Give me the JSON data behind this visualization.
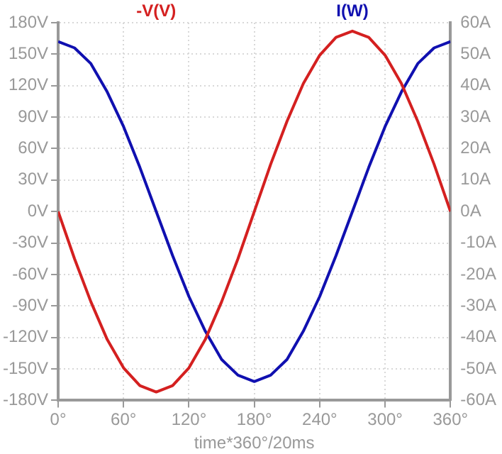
{
  "chart_data": {
    "type": "line",
    "xlabel": "time*360°/20ms",
    "x": [
      0,
      15,
      30,
      45,
      60,
      75,
      90,
      105,
      120,
      135,
      150,
      165,
      180,
      195,
      210,
      225,
      240,
      255,
      270,
      285,
      300,
      315,
      330,
      345,
      360
    ],
    "series": [
      {
        "name": "-V(V)",
        "color": "#d42020",
        "values": [
          0,
          -45,
          -86,
          -122,
          -149,
          -166,
          -172,
          -166,
          -149,
          -122,
          -86,
          -45,
          0,
          45,
          86,
          122,
          149,
          166,
          172,
          166,
          149,
          122,
          86,
          45,
          0
        ]
      },
      {
        "name": "I(W)",
        "color": "#1010b0",
        "axis": "y2",
        "values": [
          54,
          52,
          47,
          38,
          27,
          14,
          0,
          -14,
          -27,
          -38,
          -47,
          -52,
          -54,
          -52,
          -47,
          -38,
          -27,
          -14,
          0,
          14,
          27,
          38,
          47,
          52,
          54
        ]
      }
    ],
    "xlim": [
      0,
      360
    ],
    "xticks": [
      {
        "value": 0,
        "label": "0°"
      },
      {
        "value": 60,
        "label": "60°"
      },
      {
        "value": 120,
        "label": "120°"
      },
      {
        "value": 180,
        "label": "180°"
      },
      {
        "value": 240,
        "label": "240°"
      },
      {
        "value": 300,
        "label": "300°"
      },
      {
        "value": 360,
        "label": "360°"
      }
    ],
    "ylim": [
      -180,
      180
    ],
    "yticks": [
      {
        "value": -180,
        "label": "-180V"
      },
      {
        "value": -150,
        "label": "-150V"
      },
      {
        "value": -120,
        "label": "-120V"
      },
      {
        "value": -90,
        "label": "-90V"
      },
      {
        "value": -60,
        "label": "-60V"
      },
      {
        "value": -30,
        "label": "-30V"
      },
      {
        "value": 0,
        "label": "0V"
      },
      {
        "value": 30,
        "label": "30V"
      },
      {
        "value": 60,
        "label": "60V"
      },
      {
        "value": 90,
        "label": "90V"
      },
      {
        "value": 120,
        "label": "120V"
      },
      {
        "value": 150,
        "label": "150V"
      },
      {
        "value": 180,
        "label": "180V"
      }
    ],
    "y2lim": [
      -60,
      60
    ],
    "y2ticks": [
      {
        "value": -60,
        "label": "-60A"
      },
      {
        "value": -50,
        "label": "-50A"
      },
      {
        "value": -40,
        "label": "-40A"
      },
      {
        "value": -30,
        "label": "-30A"
      },
      {
        "value": -20,
        "label": "-20A"
      },
      {
        "value": -10,
        "label": "-10A"
      },
      {
        "value": 0,
        "label": "0A"
      },
      {
        "value": 10,
        "label": "10A"
      },
      {
        "value": 20,
        "label": "20A"
      },
      {
        "value": 30,
        "label": "30A"
      },
      {
        "value": 40,
        "label": "40A"
      },
      {
        "value": 50,
        "label": "50A"
      },
      {
        "value": 60,
        "label": "60A"
      }
    ],
    "grid": true,
    "legend": "top",
    "marker": "none",
    "line_style": "solid"
  }
}
